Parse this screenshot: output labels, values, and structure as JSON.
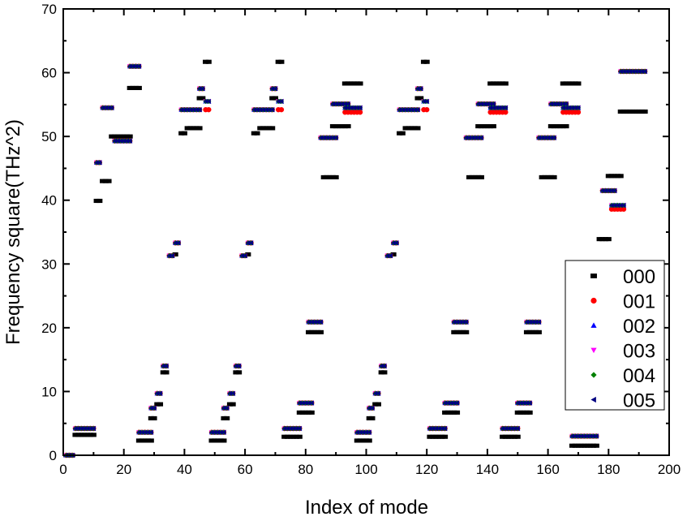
{
  "chart_data": {
    "type": "scatter",
    "title": "",
    "xlabel": "Index of mode",
    "ylabel": "Frequency square(THz^2)",
    "xlim": [
      0,
      200
    ],
    "ylim": [
      0,
      70
    ],
    "x_ticks": [
      0,
      20,
      40,
      60,
      80,
      100,
      120,
      140,
      160,
      180,
      200
    ],
    "y_ticks": [
      0,
      10,
      20,
      30,
      40,
      50,
      60,
      70
    ],
    "x_tick_labels": [
      "0",
      "20",
      "40",
      "60",
      "80",
      "100",
      "120",
      "140",
      "160",
      "180",
      "200"
    ],
    "y_tick_labels": [
      "0",
      "10",
      "20",
      "30",
      "40",
      "50",
      "60",
      "70"
    ],
    "grid": false,
    "legend_placement": "bottom-right",
    "segment_format": "[first_mode_index, last_mode_index, frequency_square] — one point per integer mode index",
    "series": [
      {
        "name": "000",
        "color": "#000000",
        "marker": "square",
        "segments": [
          [
            1,
            3,
            0
          ],
          [
            4,
            10,
            3.2
          ],
          [
            11,
            12,
            39.9
          ],
          [
            13,
            15,
            43.0
          ],
          [
            16,
            22,
            50.0
          ],
          [
            22,
            25,
            57.6
          ],
          [
            25,
            29,
            2.3
          ],
          [
            29,
            30,
            5.8
          ],
          [
            31,
            32,
            8.0
          ],
          [
            33,
            34,
            13.0
          ],
          [
            37,
            37,
            31.5
          ],
          [
            39,
            40,
            50.5
          ],
          [
            41,
            45,
            51.3
          ],
          [
            45,
            46,
            56.0
          ],
          [
            47,
            48,
            61.7
          ],
          [
            49,
            53,
            2.3
          ],
          [
            53,
            54,
            5.8
          ],
          [
            55,
            56,
            8.0
          ],
          [
            57,
            58,
            13.0
          ],
          [
            61,
            61,
            31.5
          ],
          [
            63,
            64,
            50.5
          ],
          [
            65,
            69,
            51.3
          ],
          [
            69,
            70,
            56.0
          ],
          [
            71,
            72,
            61.7
          ],
          [
            73,
            78,
            2.9
          ],
          [
            78,
            82,
            6.7
          ],
          [
            81,
            85,
            19.3
          ],
          [
            86,
            90,
            43.6
          ],
          [
            89,
            94,
            51.6
          ],
          [
            93,
            98,
            58.3
          ],
          [
            97,
            101,
            2.3
          ],
          [
            101,
            102,
            5.8
          ],
          [
            103,
            104,
            8.0
          ],
          [
            105,
            106,
            13.0
          ],
          [
            109,
            109,
            31.5
          ],
          [
            111,
            112,
            50.5
          ],
          [
            113,
            117,
            51.3
          ],
          [
            117,
            118,
            56.0
          ],
          [
            119,
            120,
            61.7
          ],
          [
            121,
            126,
            2.9
          ],
          [
            126,
            130,
            6.7
          ],
          [
            129,
            133,
            19.3
          ],
          [
            134,
            138,
            43.6
          ],
          [
            137,
            142,
            51.6
          ],
          [
            141,
            146,
            58.3
          ],
          [
            145,
            150,
            2.9
          ],
          [
            150,
            154,
            6.7
          ],
          [
            153,
            157,
            19.3
          ],
          [
            158,
            162,
            43.6
          ],
          [
            161,
            166,
            51.6
          ],
          [
            165,
            170,
            58.3
          ],
          [
            168,
            176,
            1.5
          ],
          [
            177,
            180,
            33.9
          ],
          [
            180,
            184,
            43.8
          ],
          [
            184,
            192,
            53.9
          ]
        ]
      },
      {
        "name": "001",
        "color": "#ff0000",
        "marker": "circle",
        "segments": [
          [
            1,
            3,
            0
          ],
          [
            4,
            10,
            4.2
          ],
          [
            11,
            12,
            45.9
          ],
          [
            13,
            16,
            54.5
          ],
          [
            17,
            22,
            49.3
          ],
          [
            22,
            25,
            61.0
          ],
          [
            25,
            29,
            3.6
          ],
          [
            29,
            30,
            7.4
          ],
          [
            31,
            32,
            9.7
          ],
          [
            33,
            34,
            14.0
          ],
          [
            35,
            36,
            31.3
          ],
          [
            37,
            38,
            33.3
          ],
          [
            39,
            45,
            54.2
          ],
          [
            45,
            46,
            57.5
          ],
          [
            47,
            48,
            54.2
          ],
          [
            49,
            53,
            3.6
          ],
          [
            53,
            54,
            7.4
          ],
          [
            55,
            56,
            9.7
          ],
          [
            57,
            58,
            14.0
          ],
          [
            59,
            60,
            31.3
          ],
          [
            61,
            62,
            33.3
          ],
          [
            63,
            69,
            54.2
          ],
          [
            69,
            70,
            57.5
          ],
          [
            71,
            72,
            54.2
          ],
          [
            73,
            78,
            4.2
          ],
          [
            78,
            82,
            8.2
          ],
          [
            81,
            85,
            20.9
          ],
          [
            85,
            90,
            49.8
          ],
          [
            89,
            94,
            55.1
          ],
          [
            93,
            98,
            53.8
          ],
          [
            97,
            101,
            3.6
          ],
          [
            101,
            102,
            7.4
          ],
          [
            103,
            104,
            9.7
          ],
          [
            105,
            106,
            14.0
          ],
          [
            107,
            108,
            31.3
          ],
          [
            109,
            110,
            33.3
          ],
          [
            111,
            117,
            54.2
          ],
          [
            117,
            118,
            57.5
          ],
          [
            119,
            120,
            54.2
          ],
          [
            121,
            126,
            4.2
          ],
          [
            126,
            130,
            8.2
          ],
          [
            129,
            133,
            20.9
          ],
          [
            133,
            138,
            49.8
          ],
          [
            137,
            142,
            55.1
          ],
          [
            141,
            146,
            53.8
          ],
          [
            145,
            150,
            4.2
          ],
          [
            150,
            154,
            8.2
          ],
          [
            153,
            157,
            20.9
          ],
          [
            157,
            162,
            49.8
          ],
          [
            161,
            166,
            55.1
          ],
          [
            165,
            170,
            53.8
          ],
          [
            168,
            176,
            3.0
          ],
          [
            178,
            182,
            41.5
          ],
          [
            181,
            185,
            38.6
          ],
          [
            184,
            192,
            60.2
          ]
        ]
      },
      {
        "name": "002",
        "color": "#0000ff",
        "marker": "triangle-up",
        "same_as_base": true
      },
      {
        "name": "003",
        "color": "#ff00ff",
        "marker": "triangle-down",
        "same_as_base": true
      },
      {
        "name": "004",
        "color": "#008000",
        "marker": "diamond",
        "same_as_base": true
      },
      {
        "name": "005",
        "color": "#000080",
        "marker": "triangle-left",
        "same_as_base": true
      }
    ],
    "base_segments": [
      [
        1,
        3,
        0
      ],
      [
        4,
        10,
        4.2
      ],
      [
        11,
        12,
        45.9
      ],
      [
        13,
        16,
        54.5
      ],
      [
        17,
        22,
        49.3
      ],
      [
        22,
        25,
        61.0
      ],
      [
        25,
        29,
        3.6
      ],
      [
        29,
        30,
        7.4
      ],
      [
        31,
        32,
        9.7
      ],
      [
        33,
        34,
        14.0
      ],
      [
        35,
        36,
        31.3
      ],
      [
        37,
        38,
        33.3
      ],
      [
        39,
        45,
        54.2
      ],
      [
        45,
        46,
        57.5
      ],
      [
        47,
        48,
        55.5
      ],
      [
        49,
        53,
        3.6
      ],
      [
        53,
        54,
        7.4
      ],
      [
        55,
        56,
        9.7
      ],
      [
        57,
        58,
        14.0
      ],
      [
        59,
        60,
        31.3
      ],
      [
        61,
        62,
        33.3
      ],
      [
        63,
        69,
        54.2
      ],
      [
        69,
        70,
        57.5
      ],
      [
        71,
        72,
        55.5
      ],
      [
        73,
        78,
        4.2
      ],
      [
        78,
        82,
        8.2
      ],
      [
        81,
        85,
        20.9
      ],
      [
        85,
        90,
        49.8
      ],
      [
        89,
        94,
        55.1
      ],
      [
        93,
        98,
        54.5
      ],
      [
        97,
        101,
        3.6
      ],
      [
        101,
        102,
        7.4
      ],
      [
        103,
        104,
        9.7
      ],
      [
        105,
        106,
        14.0
      ],
      [
        107,
        108,
        31.3
      ],
      [
        109,
        110,
        33.3
      ],
      [
        111,
        117,
        54.2
      ],
      [
        117,
        118,
        57.5
      ],
      [
        119,
        120,
        55.5
      ],
      [
        121,
        126,
        4.2
      ],
      [
        126,
        130,
        8.2
      ],
      [
        129,
        133,
        20.9
      ],
      [
        133,
        138,
        49.8
      ],
      [
        137,
        142,
        55.1
      ],
      [
        141,
        146,
        54.5
      ],
      [
        145,
        150,
        4.2
      ],
      [
        150,
        154,
        8.2
      ],
      [
        153,
        157,
        20.9
      ],
      [
        157,
        162,
        49.8
      ],
      [
        161,
        166,
        55.1
      ],
      [
        165,
        170,
        54.5
      ],
      [
        168,
        176,
        3.0
      ],
      [
        178,
        182,
        41.5
      ],
      [
        181,
        185,
        39.2
      ],
      [
        184,
        192,
        60.2
      ]
    ]
  }
}
